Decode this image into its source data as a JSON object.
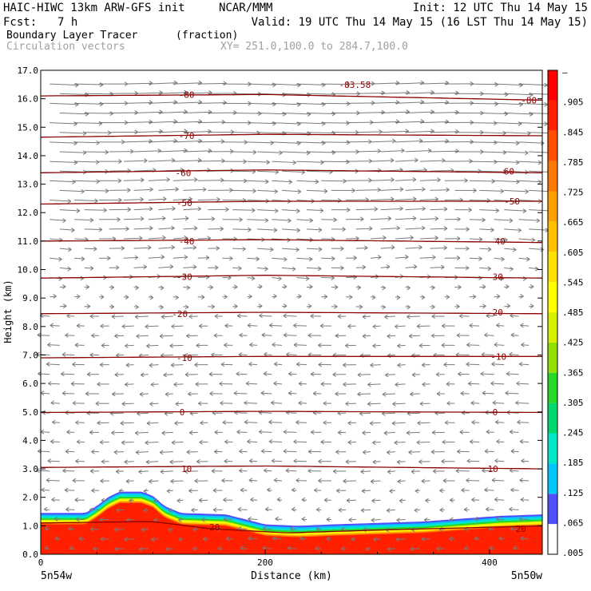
{
  "header": {
    "title": "HAIC-HIWC 13km ARW-GFS init",
    "org": "NCAR/MMM",
    "init": "Init: 12 UTC Thu 14 May 15",
    "fcst_label": "Fcst:",
    "fcst_value": "7 h",
    "valid": "Valid: 19 UTC Thu 14 May 15 (16 LST Thu 14 May 15)",
    "field": "Boundary Layer Tracer",
    "field_units": "(fraction)",
    "vectors": "Circulation vectors",
    "xy": "XY= 251.0,100.0 to 284.7,100.0"
  },
  "colors": {
    "contour": "#8b0000",
    "vector": "#7a7a7a",
    "secondary_text": "#a0a0a0",
    "tracer_high": "#ff1a1a"
  },
  "chart_data": {
    "type": "heatmap",
    "xlabel": "Distance (km)",
    "ylabel": "Height (km)",
    "xlim": [
      0,
      447
    ],
    "ylim": [
      0,
      17
    ],
    "x_ticks": [
      0,
      200,
      400
    ],
    "y_ticks": [
      "0.0",
      "1.0",
      "2.0",
      "3.0",
      "4.0",
      "5.0",
      "6.0",
      "7.0",
      "8.0",
      "9.0",
      "10.0",
      "11.0",
      "12.0",
      "13.0",
      "14.0",
      "15.0",
      "16.0",
      "17.0"
    ],
    "left_endpoint": "5n54w",
    "right_endpoint": "5n50w",
    "colorbar": {
      "labels": [
        "–",
        ".905",
        ".845",
        ".785",
        ".725",
        ".665",
        ".605",
        ".545",
        ".485",
        ".425",
        ".365",
        ".305",
        ".245",
        ".185",
        ".125",
        ".065",
        ".005"
      ],
      "colors": [
        "#ffffff",
        "#5050ff",
        "#00c8ff",
        "#00e8c8",
        "#00d870",
        "#28d828",
        "#90e000",
        "#d8f000",
        "#ffff00",
        "#ffe000",
        "#ffc000",
        "#ffa000",
        "#ff7800",
        "#ff5000",
        "#ff2000",
        "#ff0000"
      ]
    },
    "tracer_top": [
      [
        0,
        1.45
      ],
      [
        40,
        1.45
      ],
      [
        50,
        1.7
      ],
      [
        60,
        2.0
      ],
      [
        70,
        2.2
      ],
      [
        90,
        2.2
      ],
      [
        100,
        2.05
      ],
      [
        110,
        1.7
      ],
      [
        125,
        1.45
      ],
      [
        165,
        1.4
      ],
      [
        185,
        1.2
      ],
      [
        200,
        1.05
      ],
      [
        230,
        1.0
      ],
      [
        260,
        1.05
      ],
      [
        300,
        1.1
      ],
      [
        340,
        1.15
      ],
      [
        375,
        1.25
      ],
      [
        410,
        1.35
      ],
      [
        447,
        1.4
      ]
    ],
    "isotherms": [
      {
        "label": "20",
        "label_positions": [
          [
            155,
            0.95
          ],
          [
            428,
            0.9
          ]
        ],
        "heights": [
          [
            0,
            1.1
          ],
          [
            100,
            1.15
          ],
          [
            150,
            0.9
          ],
          [
            220,
            0.75
          ],
          [
            300,
            0.85
          ],
          [
            400,
            0.95
          ],
          [
            447,
            1.0
          ]
        ]
      },
      {
        "label": "10",
        "label_positions": [
          [
            130,
            3.0
          ],
          [
            403,
            3.0
          ]
        ],
        "heights": [
          [
            0,
            3.05
          ],
          [
            200,
            3.1
          ],
          [
            447,
            3.0
          ]
        ]
      },
      {
        "label": "0",
        "label_positions": [
          [
            126,
            5.0
          ],
          [
            405,
            5.0
          ]
        ],
        "heights": [
          [
            0,
            4.98
          ],
          [
            200,
            5.02
          ],
          [
            447,
            4.98
          ]
        ]
      },
      {
        "label": "-10",
        "label_positions": [
          [
            128,
            6.9
          ],
          [
            408,
            6.95
          ]
        ],
        "heights": [
          [
            0,
            6.9
          ],
          [
            200,
            6.95
          ],
          [
            447,
            6.95
          ]
        ]
      },
      {
        "label": "-20",
        "label_positions": [
          [
            124,
            8.45
          ],
          [
            405,
            8.5
          ]
        ],
        "heights": [
          [
            0,
            8.45
          ],
          [
            200,
            8.5
          ],
          [
            447,
            8.45
          ]
        ]
      },
      {
        "label": "-30",
        "label_positions": [
          [
            128,
            9.75
          ],
          [
            405,
            9.75
          ]
        ],
        "heights": [
          [
            0,
            9.7
          ],
          [
            200,
            9.8
          ],
          [
            447,
            9.7
          ]
        ]
      },
      {
        "label": "-40",
        "label_positions": [
          [
            130,
            11.0
          ],
          [
            407,
            11.0
          ]
        ],
        "heights": [
          [
            0,
            11.0
          ],
          [
            200,
            11.05
          ],
          [
            447,
            10.95
          ]
        ]
      },
      {
        "label": "-50",
        "label_positions": [
          [
            128,
            12.35
          ],
          [
            420,
            12.4
          ]
        ],
        "heights": [
          [
            0,
            12.3
          ],
          [
            200,
            12.4
          ],
          [
            447,
            12.4
          ]
        ]
      },
      {
        "label": "-60",
        "label_positions": [
          [
            127,
            13.4
          ],
          [
            415,
            13.45
          ]
        ],
        "heights": [
          [
            0,
            13.4
          ],
          [
            200,
            13.5
          ],
          [
            447,
            13.4
          ]
        ]
      },
      {
        "label": "-70",
        "label_positions": [
          [
            130,
            14.7
          ]
        ],
        "heights": [
          [
            0,
            14.65
          ],
          [
            200,
            14.75
          ],
          [
            447,
            14.7
          ]
        ]
      },
      {
        "label": "-80",
        "label_positions": [
          [
            130,
            16.15
          ],
          [
            435,
            15.95
          ]
        ],
        "heights": [
          [
            0,
            16.1
          ],
          [
            200,
            16.15
          ],
          [
            447,
            15.95
          ]
        ]
      }
    ],
    "min_label": {
      "text": "-83.58",
      "x": 280,
      "y": 16.5
    },
    "vectors_desc": "upper levels westerly (rightward), mid and lower levels easterly (leftward), near surface weak"
  }
}
